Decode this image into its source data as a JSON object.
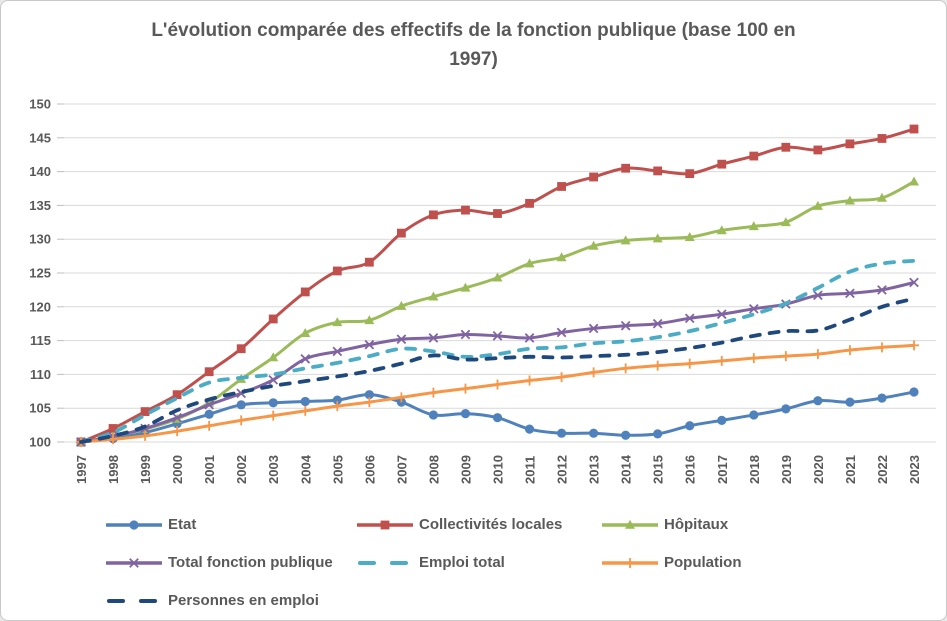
{
  "colors": {
    "text": "#595959",
    "grid": "#d9d9d9",
    "tick": "#bfbfbf",
    "border": "#c9c9c9",
    "background": "#ffffff"
  },
  "chart_data": {
    "type": "line",
    "title": "L'évolution comparée des effectifs de la fonction publique (base 100 en\n1997)",
    "xlabel": "",
    "ylabel": "",
    "ylim": [
      100,
      150
    ],
    "ytick_step": 5,
    "grid": true,
    "legend_position": "bottom",
    "categories": [
      "1997",
      "1998",
      "1999",
      "2000",
      "2001",
      "2002",
      "2003",
      "2004",
      "2005",
      "2006",
      "2007",
      "2008",
      "2009",
      "2010",
      "2011",
      "2012",
      "2013",
      "2014",
      "2015",
      "2016",
      "2017",
      "2018",
      "2019",
      "2020",
      "2021",
      "2022",
      "2023"
    ],
    "series": [
      {
        "name": "Etat",
        "color": "#4F81BD",
        "marker": "circle",
        "dash": "solid",
        "values": [
          100,
          100.5,
          101.4,
          102.7,
          104.1,
          105.5,
          105.8,
          106.0,
          106.2,
          107.0,
          105.9,
          104.0,
          104.2,
          103.6,
          101.9,
          101.3,
          101.3,
          101.0,
          101.2,
          102.4,
          103.2,
          104.0,
          104.9,
          106.1,
          105.9,
          106.5,
          107.4
        ]
      },
      {
        "name": "Collectivités locales",
        "color": "#C0504D",
        "marker": "square",
        "dash": "solid",
        "values": [
          100,
          102.0,
          104.5,
          107.0,
          110.4,
          113.8,
          118.2,
          122.2,
          125.3,
          126.6,
          130.9,
          133.6,
          134.3,
          133.8,
          135.3,
          137.8,
          139.2,
          140.5,
          140.1,
          139.7,
          141.1,
          142.3,
          143.6,
          143.2,
          144.1,
          144.9,
          146.3
        ]
      },
      {
        "name": "Hôpitaux",
        "color": "#9BBB59",
        "marker": "triangle",
        "dash": "solid",
        "values": [
          100,
          100.8,
          101.9,
          103.4,
          105.8,
          109.3,
          112.5,
          116.1,
          117.7,
          118.0,
          120.1,
          121.5,
          122.8,
          124.3,
          126.4,
          127.3,
          129.0,
          129.8,
          130.1,
          130.3,
          131.3,
          131.9,
          132.5,
          134.9,
          135.7,
          136.1,
          138.5
        ]
      },
      {
        "name": "Total fonction publique",
        "color": "#8064A2",
        "marker": "x",
        "dash": "solid",
        "values": [
          100,
          100.8,
          102.0,
          103.6,
          105.5,
          107.2,
          109.2,
          112.3,
          113.4,
          114.4,
          115.2,
          115.4,
          115.9,
          115.7,
          115.4,
          116.2,
          116.8,
          117.2,
          117.5,
          118.3,
          118.9,
          119.7,
          120.4,
          121.7,
          122.0,
          122.5,
          123.6
        ]
      },
      {
        "name": "Emploi total",
        "color": "#4BACC6",
        "marker": "none",
        "dash": "dashed",
        "values": [
          100,
          101.4,
          104.0,
          106.5,
          108.8,
          109.5,
          110.0,
          110.9,
          111.7,
          112.7,
          113.8,
          113.4,
          112.6,
          113.0,
          113.8,
          114.0,
          114.6,
          114.9,
          115.5,
          116.4,
          117.6,
          118.9,
          120.5,
          122.8,
          125.2,
          126.4,
          126.8
        ]
      },
      {
        "name": "Population",
        "color": "#F79646",
        "marker": "plus",
        "dash": "solid",
        "values": [
          100,
          100.4,
          100.9,
          101.6,
          102.4,
          103.2,
          103.9,
          104.6,
          105.3,
          105.9,
          106.6,
          107.3,
          107.9,
          108.5,
          109.1,
          109.6,
          110.3,
          110.9,
          111.3,
          111.6,
          112.0,
          112.4,
          112.7,
          113.0,
          113.6,
          114.0,
          114.3
        ]
      },
      {
        "name": "Personnes en emploi",
        "color": "#1F497D",
        "marker": "none",
        "dash": "dashed",
        "values": [
          100,
          100.9,
          102.3,
          104.7,
          106.3,
          107.4,
          108.3,
          109.0,
          109.7,
          110.5,
          111.6,
          112.8,
          112.2,
          112.4,
          112.6,
          112.5,
          112.7,
          112.9,
          113.3,
          113.9,
          114.7,
          115.7,
          116.4,
          116.5,
          118.1,
          120.0,
          121.2
        ]
      }
    ]
  }
}
